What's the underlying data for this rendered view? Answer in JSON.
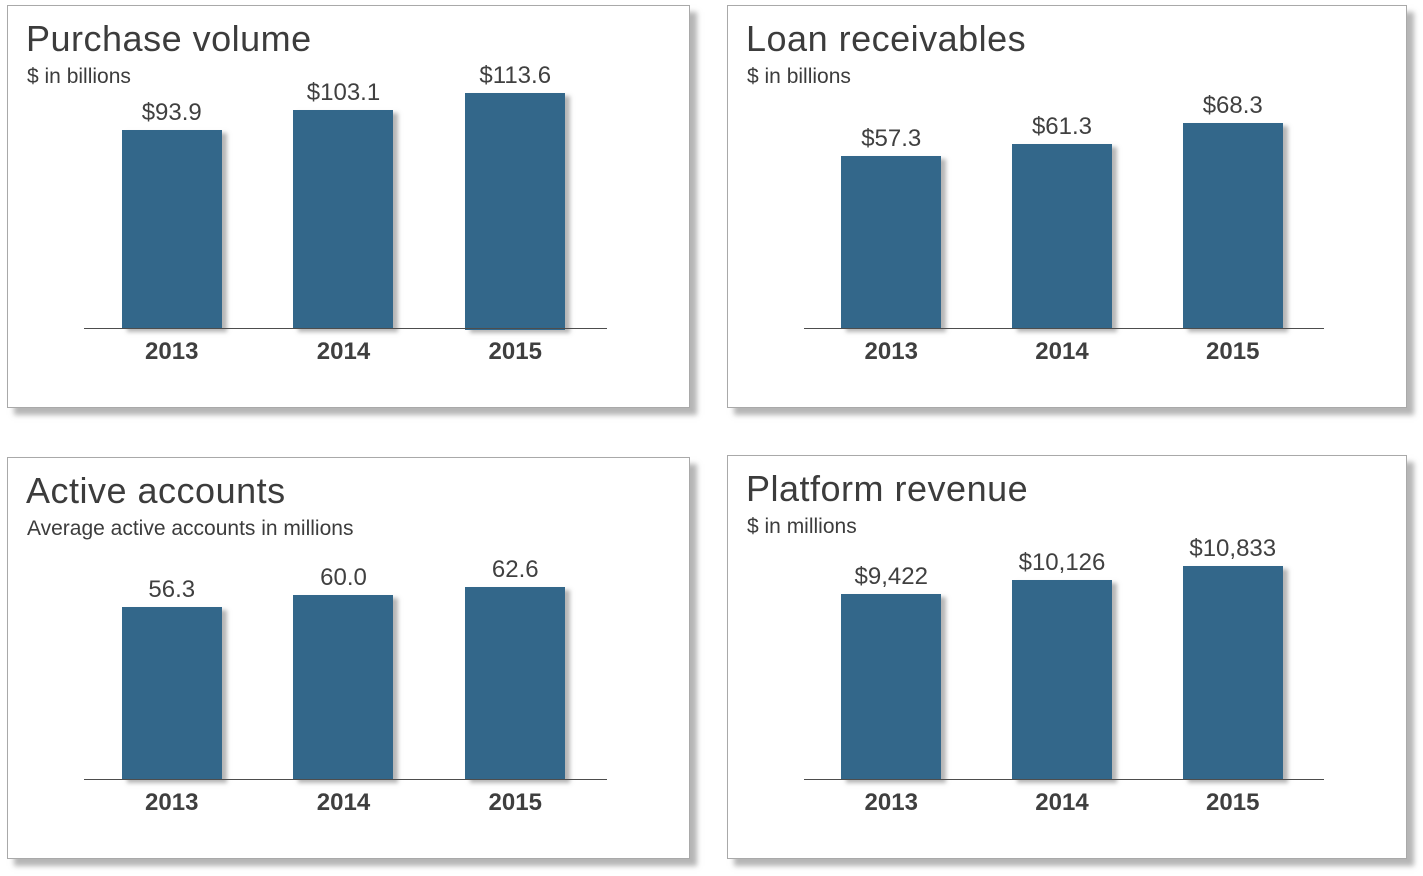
{
  "accent_color": "#33678A",
  "chart_data": [
    {
      "type": "bar",
      "title": "Purchase volume",
      "subtitle": "$ in billions",
      "categories": [
        "2013",
        "2014",
        "2015"
      ],
      "values": [
        93.9,
        103.1,
        113.6
      ],
      "labels": [
        "$93.9",
        "$103.1",
        "$113.6"
      ],
      "ylim": [
        0,
        125
      ],
      "xlabel": "",
      "ylabel": "$ in billions",
      "grid": false,
      "legend": "none",
      "bar_color": "#33678A"
    },
    {
      "type": "bar",
      "title": "Loan receivables",
      "subtitle": "$ in billions",
      "categories": [
        "2013",
        "2014",
        "2015"
      ],
      "values": [
        57.3,
        61.3,
        68.3
      ],
      "labels": [
        "$57.3",
        "$61.3",
        "$68.3"
      ],
      "ylim": [
        0,
        88
      ],
      "xlabel": "",
      "ylabel": "$ in billions",
      "grid": false,
      "legend": "none",
      "bar_color": "#33678A"
    },
    {
      "type": "bar",
      "title": "Active accounts",
      "subtitle": "Average active accounts in millions",
      "categories": [
        "2013",
        "2014",
        "2015"
      ],
      "values": [
        56.3,
        60.0,
        62.6
      ],
      "labels": [
        "56.3",
        "60.0",
        "62.6"
      ],
      "ylim": [
        0,
        86
      ],
      "xlabel": "",
      "ylabel": "Average active accounts in millions",
      "grid": false,
      "legend": "none",
      "bar_color": "#33678A"
    },
    {
      "type": "bar",
      "title": "Platform revenue",
      "subtitle": "$ in millions",
      "categories": [
        "2013",
        "2014",
        "2015"
      ],
      "values": [
        9422,
        10126,
        10833
      ],
      "labels": [
        "$9,422",
        "$10,126",
        "$10,833"
      ],
      "ylim": [
        0,
        13400
      ],
      "xlabel": "",
      "ylabel": "$ in millions",
      "grid": false,
      "legend": "none",
      "bar_color": "#33678A"
    }
  ]
}
